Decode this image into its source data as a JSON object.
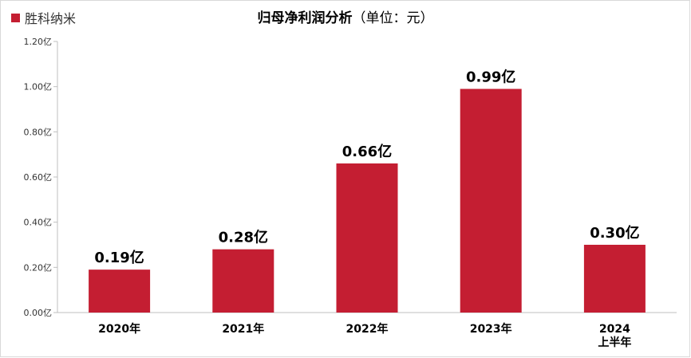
{
  "chart_data": {
    "type": "bar",
    "title": "归母净利润分析",
    "subtitle": "（单位：元）",
    "categories": [
      [
        "2020年"
      ],
      [
        "2021年"
      ],
      [
        "2022年"
      ],
      [
        "2023年"
      ],
      [
        "2024",
        "上半年"
      ]
    ],
    "series": [
      {
        "name": "胜科纳米",
        "values": [
          0.19,
          0.28,
          0.66,
          0.99,
          0.3
        ]
      }
    ],
    "data_labels": [
      "0.19亿",
      "0.28亿",
      "0.66亿",
      "0.99亿",
      "0.30亿"
    ],
    "ylim": [
      0,
      1.2
    ],
    "yticks": [
      0,
      0.2,
      0.4,
      0.6,
      0.8,
      1.0,
      1.2
    ],
    "ytick_labels": [
      "0.00亿",
      "0.20亿",
      "0.40亿",
      "0.60亿",
      "0.80亿",
      "1.00亿",
      "1.20亿"
    ],
    "xlabel": "",
    "ylabel": "",
    "legend_position": "top-left",
    "grid": false,
    "colors": {
      "bar": "#c41e32",
      "axis": "#bfbfbf"
    }
  }
}
